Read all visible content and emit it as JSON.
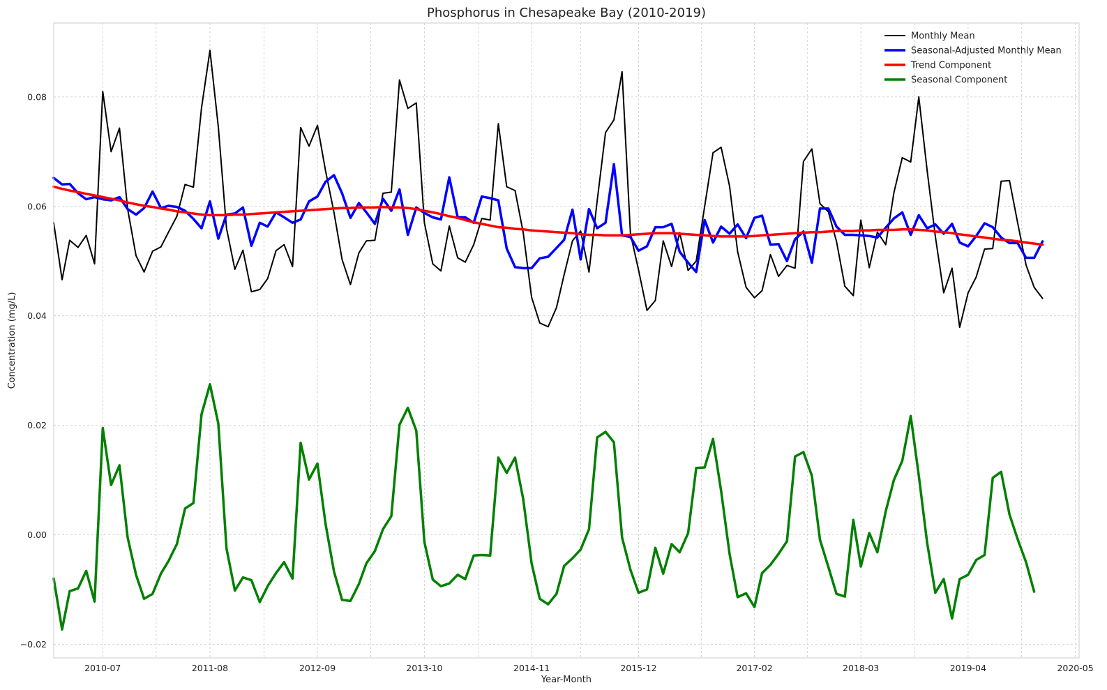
{
  "chart_data": {
    "type": "line",
    "title": "Phosphorus in Chesapeake Bay (2010-2019)",
    "xlabel": "Year-Month",
    "ylabel": "Concentration (mg/L)",
    "x_tick_labels": [
      "2010-07",
      "2011-08",
      "2012-09",
      "2013-10",
      "2014-11",
      "2015-12",
      "2017-02",
      "2018-03",
      "2019-04",
      "2020-05"
    ],
    "x_tick_dates": [
      "2010-07-01",
      "2011-08-01",
      "2012-09-01",
      "2013-10-01",
      "2014-11-01",
      "2015-12-01",
      "2017-02-01",
      "2018-03-01",
      "2019-04-01",
      "2020-05-01"
    ],
    "x_range": [
      "2010-01-01",
      "2020-05-15"
    ],
    "x_start": "2010-01",
    "ylim": [
      -0.0225,
      0.0935
    ],
    "y_ticks": [
      -0.02,
      0.0,
      0.02,
      0.04,
      0.06,
      0.08
    ],
    "y_tick_labels": [
      "−0.02",
      "0.00",
      "0.02",
      "0.04",
      "0.06",
      "0.08"
    ],
    "grid": true,
    "legend_position": "top-right",
    "series": [
      {
        "name": "Monthly Mean",
        "color": "#000000",
        "values": [
          0.057,
          0.0466,
          0.0538,
          0.0525,
          0.0547,
          0.0495,
          0.081,
          0.07,
          0.0743,
          0.0595,
          0.051,
          0.048,
          0.0518,
          0.0526,
          0.0553,
          0.0582,
          0.064,
          0.0635,
          0.078,
          0.0885,
          0.0745,
          0.056,
          0.0485,
          0.052,
          0.0444,
          0.0448,
          0.0468,
          0.0519,
          0.053,
          0.049,
          0.0744,
          0.071,
          0.0748,
          0.0665,
          0.0589,
          0.0503,
          0.0457,
          0.0515,
          0.0537,
          0.0538,
          0.0624,
          0.0626,
          0.0831,
          0.0779,
          0.0789,
          0.057,
          0.0495,
          0.0482,
          0.0564,
          0.0506,
          0.0498,
          0.053,
          0.0578,
          0.0575,
          0.0751,
          0.0636,
          0.0629,
          0.0552,
          0.0434,
          0.0387,
          0.038,
          0.0415,
          0.0475,
          0.0537,
          0.0555,
          0.048,
          0.061,
          0.0735,
          0.0758,
          0.0846,
          0.055,
          0.0484,
          0.041,
          0.0428,
          0.0537,
          0.049,
          0.0552,
          0.0483,
          0.05,
          0.06,
          0.0698,
          0.0708,
          0.0637,
          0.0517,
          0.0452,
          0.0433,
          0.0446,
          0.0512,
          0.0472,
          0.0492,
          0.0487,
          0.0682,
          0.0705,
          0.0605,
          0.059,
          0.0536,
          0.0454,
          0.0437,
          0.0575,
          0.0488,
          0.0553,
          0.053,
          0.0625,
          0.0689,
          0.0681,
          0.08,
          0.0665,
          0.0545,
          0.0442,
          0.0487,
          0.0379,
          0.0442,
          0.0471,
          0.0522,
          0.0523,
          0.0646,
          0.0647,
          0.057,
          0.0493,
          0.0452,
          0.0432
        ]
      },
      {
        "name": "Seasonal-Adjusted Monthly Mean",
        "color": "#0000ff",
        "values": [
          0.0652,
          0.064,
          0.0641,
          0.0624,
          0.0613,
          0.0617,
          0.0613,
          0.0611,
          0.0617,
          0.0595,
          0.0585,
          0.0597,
          0.0627,
          0.0597,
          0.0601,
          0.0599,
          0.0592,
          0.0577,
          0.056,
          0.0609,
          0.0541,
          0.0585,
          0.0587,
          0.0598,
          0.0528,
          0.057,
          0.0563,
          0.0589,
          0.058,
          0.057,
          0.0576,
          0.0609,
          0.0618,
          0.0645,
          0.0657,
          0.0624,
          0.0579,
          0.0606,
          0.0589,
          0.0568,
          0.0614,
          0.0592,
          0.0631,
          0.0548,
          0.0598,
          0.0588,
          0.058,
          0.0576,
          0.0653,
          0.058,
          0.058,
          0.057,
          0.0618,
          0.0615,
          0.0611,
          0.0523,
          0.0489,
          0.0487,
          0.0487,
          0.0505,
          0.0508,
          0.0524,
          0.0539,
          0.0594,
          0.0503,
          0.0595,
          0.056,
          0.057,
          0.0677,
          0.0547,
          0.0544,
          0.0519,
          0.0527,
          0.0562,
          0.0562,
          0.0568,
          0.0517,
          0.0497,
          0.048,
          0.0575,
          0.0534,
          0.0563,
          0.055,
          0.0567,
          0.0542,
          0.0579,
          0.0583,
          0.053,
          0.0531,
          0.05,
          0.054,
          0.0554,
          0.0497,
          0.0596,
          0.0596,
          0.0563,
          0.0548,
          0.0548,
          0.0547,
          0.0546,
          0.0543,
          0.0561,
          0.0578,
          0.0589,
          0.0548,
          0.0584,
          0.056,
          0.0567,
          0.055,
          0.0568,
          0.0534,
          0.0527,
          0.0546,
          0.0569,
          0.0562,
          0.0543,
          0.0533,
          0.0533,
          0.0506,
          0.0506,
          0.0536
        ]
      },
      {
        "name": "Trend Component",
        "color": "#ff0000",
        "values": [
          0.0636,
          0.0632,
          0.0629,
          0.0626,
          0.0623,
          0.062,
          0.0617,
          0.0614,
          0.0611,
          0.0607,
          0.0604,
          0.0601,
          0.0599,
          0.0596,
          0.0594,
          0.0591,
          0.0589,
          0.0587,
          0.0585,
          0.0584,
          0.0584,
          0.0584,
          0.0585,
          0.0585,
          0.0586,
          0.0587,
          0.0588,
          0.0589,
          0.059,
          0.0591,
          0.0592,
          0.0593,
          0.0594,
          0.0595,
          0.0596,
          0.0597,
          0.0597,
          0.0598,
          0.0598,
          0.0598,
          0.0599,
          0.0598,
          0.0598,
          0.0597,
          0.0595,
          0.0592,
          0.0589,
          0.0586,
          0.0582,
          0.0579,
          0.0575,
          0.0571,
          0.0568,
          0.0565,
          0.0562,
          0.0561,
          0.0559,
          0.0558,
          0.0556,
          0.0555,
          0.0554,
          0.0553,
          0.0552,
          0.0551,
          0.0549,
          0.0548,
          0.0548,
          0.0547,
          0.0547,
          0.0547,
          0.0548,
          0.0549,
          0.055,
          0.0551,
          0.0551,
          0.0551,
          0.055,
          0.0549,
          0.0548,
          0.0547,
          0.0546,
          0.0545,
          0.0545,
          0.0545,
          0.0545,
          0.0546,
          0.0547,
          0.0548,
          0.0549,
          0.055,
          0.0551,
          0.0552,
          0.0553,
          0.0553,
          0.0554,
          0.0555,
          0.0555,
          0.0555,
          0.0556,
          0.0556,
          0.0557,
          0.0557,
          0.0557,
          0.0558,
          0.0558,
          0.0557,
          0.0556,
          0.0554,
          0.0553,
          0.0551,
          0.0549,
          0.0547,
          0.0545,
          0.0543,
          0.0541,
          0.0539,
          0.0538,
          0.0536,
          0.0534,
          0.0532,
          0.053
        ]
      },
      {
        "name": "Seasonal Component",
        "color": "#008000",
        "values": [
          -0.008,
          -0.0173,
          -0.0103,
          -0.0098,
          -0.0066,
          -0.0122,
          0.0195,
          0.0091,
          0.0127,
          -0.0005,
          -0.0073,
          -0.0117,
          -0.0108,
          -0.0071,
          -0.0048,
          -0.0017,
          0.0048,
          0.0058,
          0.022,
          0.0275,
          0.0203,
          -0.0025,
          -0.0102,
          -0.0078,
          -0.0083,
          -0.0123,
          -0.0094,
          -0.007,
          -0.005,
          -0.008,
          0.0168,
          0.0101,
          0.013,
          0.002,
          -0.0067,
          -0.0119,
          -0.0121,
          -0.009,
          -0.0052,
          -0.003,
          0.001,
          0.0034,
          0.0201,
          0.0232,
          0.019,
          -0.0013,
          -0.0082,
          -0.0094,
          -0.0089,
          -0.0073,
          -0.0081,
          -0.0038,
          -0.0037,
          -0.0038,
          0.0141,
          0.0113,
          0.0141,
          0.0065,
          -0.0052,
          -0.0117,
          -0.0127,
          -0.0108,
          -0.0057,
          -0.0043,
          -0.0027,
          0.001,
          0.0178,
          0.0188,
          0.0169,
          -0.0005,
          -0.0064,
          -0.0106,
          -0.01,
          -0.0024,
          -0.0071,
          -0.0017,
          -0.0032,
          0.0003,
          0.0122,
          0.0123,
          0.0175,
          0.008,
          -0.0035,
          -0.0114,
          -0.0107,
          -0.0132,
          -0.007,
          -0.0055,
          -0.0035,
          -0.0012,
          0.0143,
          0.0151,
          0.0108,
          -0.0009,
          -0.0059,
          -0.0108,
          -0.0113,
          0.0027,
          -0.0058,
          0.0003,
          -0.0032,
          0.0043,
          0.01,
          0.0135,
          0.0217,
          0.0108,
          -0.0015,
          -0.0106,
          -0.0081,
          -0.0153,
          -0.0081,
          -0.0073,
          -0.0046,
          -0.0037,
          0.0104,
          0.0115,
          0.0037,
          -0.0008,
          -0.005,
          -0.0104
        ]
      }
    ]
  }
}
